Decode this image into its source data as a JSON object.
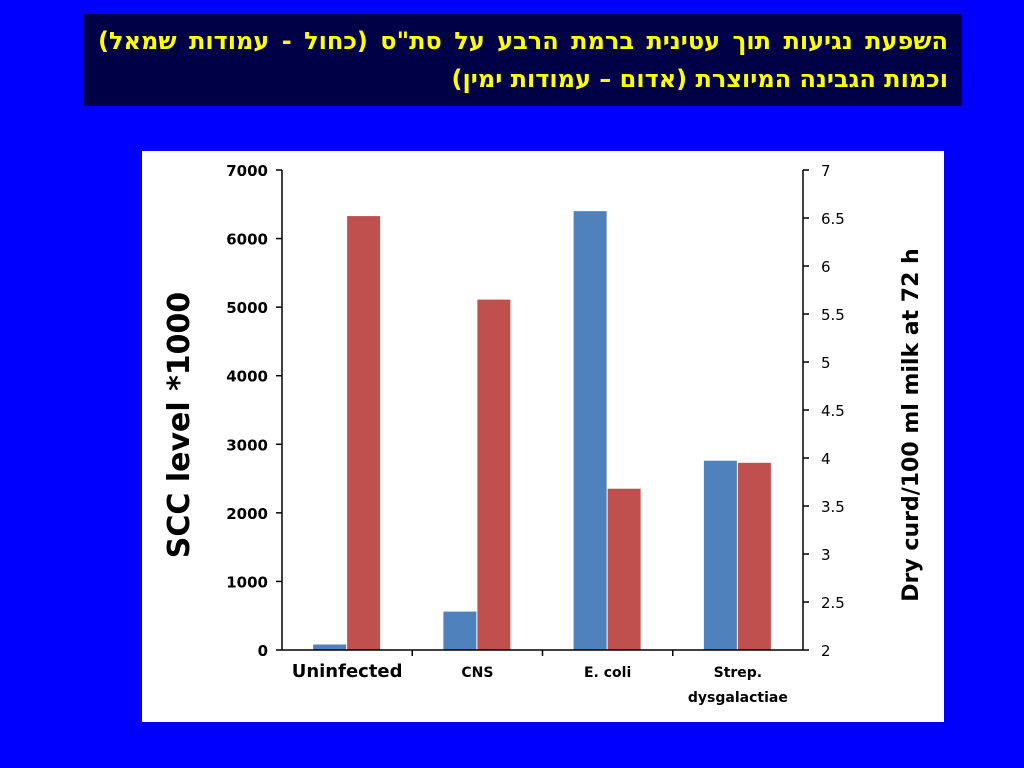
{
  "slide": {
    "title": "השפעת נגיעות תוך עטינית ברמת הרבע על סת\"ס (כחול - עמודות שמאל) וכמות הגבינה המיוצרת (אדום – עמודות ימין)"
  },
  "chart_data": {
    "type": "bar",
    "categories": [
      "Uninfected",
      "CNS",
      "E. coli",
      "Strep. dysgalactiae"
    ],
    "category_lines": [
      [
        "Uninfected"
      ],
      [
        "CNS"
      ],
      [
        "E. coli"
      ],
      [
        "Strep.",
        "dysgalactiae"
      ]
    ],
    "series": [
      {
        "values": [
          80,
          560,
          6400,
          2760
        ],
        "axis": "left",
        "color": "#4f81bd"
      },
      {
        "values": [
          6.52,
          5.65,
          3.68,
          3.95
        ],
        "axis": "right",
        "color": "#c0504d"
      }
    ],
    "ylabel": "SCC level *1000",
    "y2label": "Dry curd/100 ml milk at 72 h",
    "ylim": [
      0,
      7000
    ],
    "y2lim": [
      2,
      7
    ],
    "yticks": [
      "0",
      "1000",
      "2000",
      "3000",
      "4000",
      "5000",
      "6000",
      "7000"
    ],
    "y2ticks": [
      "2",
      "2.5",
      "3",
      "3.5",
      "4",
      "4.5",
      "5",
      "5.5",
      "6",
      "6.5",
      "7"
    ],
    "grid": false,
    "legend": "none"
  }
}
